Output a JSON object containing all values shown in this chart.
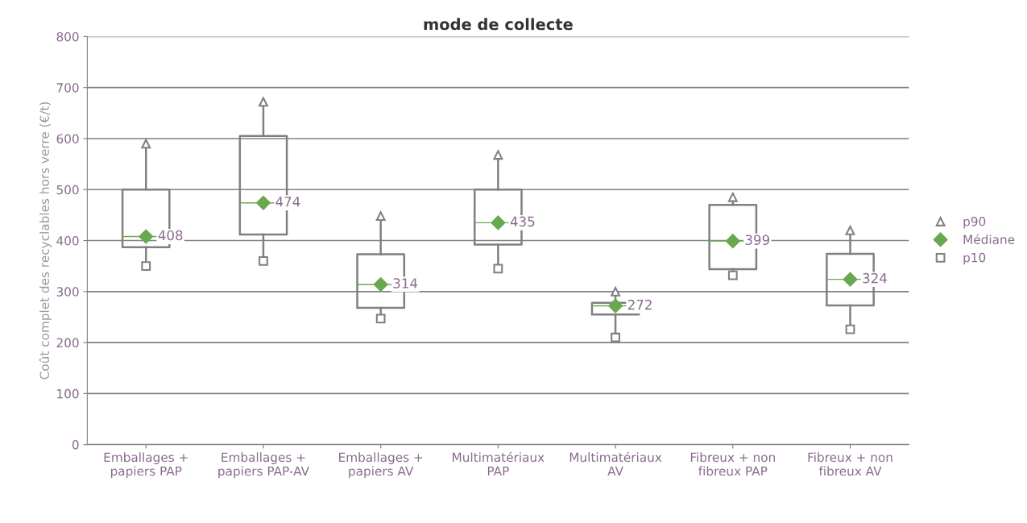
{
  "chart_data": {
    "type": "box",
    "title": "mode de collecte",
    "ylabel": "Coût complet des recyclables hors verre (€/t)",
    "categories": [
      "Emballages + papiers PAP",
      "Emballages + papiers PAP-AV",
      "Emballages + papiers AV",
      "Multimatériaux PAP",
      "Multimatériaux AV",
      "Fibreux + non fibreux PAP",
      "Fibreux + non fibreux AV"
    ],
    "boxes": [
      {
        "low": 350,
        "q1": 387,
        "median": 408,
        "q3": 500,
        "high": 590
      },
      {
        "low": 360,
        "q1": 412,
        "median": 474,
        "q3": 605,
        "high": 672
      },
      {
        "low": 247,
        "q1": 268,
        "median": 314,
        "q3": 373,
        "high": 448
      },
      {
        "low": 345,
        "q1": 392,
        "median": 435,
        "q3": 500,
        "high": 568
      },
      {
        "low": 210,
        "q1": 255,
        "median": 272,
        "q3": 278,
        "high": 300
      },
      {
        "low": 332,
        "q1": 344,
        "median": 399,
        "q3": 470,
        "high": 485
      },
      {
        "low": 226,
        "q1": 273,
        "median": 324,
        "q3": 374,
        "high": 420
      }
    ],
    "series": [
      {
        "name": "p90",
        "type": "scatter",
        "marker": "triangle",
        "color": "#808080",
        "x": [
          "Emballages + papiers PAP",
          "Emballages + papiers PAP-AV",
          "Emballages + papiers AV",
          "Multimatériaux PAP",
          "Multimatériaux AV",
          "Fibreux + non fibreux PAP",
          "Fibreux + non fibreux AV"
        ],
        "values": [
          590,
          672,
          448,
          568,
          300,
          485,
          420
        ]
      },
      {
        "name": "Médiane",
        "type": "scatter",
        "marker": "diamond",
        "color": "#6aa84f",
        "x": [
          "Emballages + papiers PAP",
          "Emballages + papiers PAP-AV",
          "Emballages + papiers AV",
          "Multimatériaux PAP",
          "Multimatériaux AV",
          "Fibreux + non fibreux PAP",
          "Fibreux + non fibreux AV"
        ],
        "values": [
          408,
          474,
          314,
          435,
          272,
          399,
          324
        ],
        "value_labels": [
          "408",
          "474",
          "314",
          "435",
          "272",
          "399",
          "324"
        ]
      },
      {
        "name": "p10",
        "type": "scatter",
        "marker": "square",
        "color": "#808080",
        "x": [
          "Emballages + papiers PAP",
          "Emballages + papiers PAP-AV",
          "Emballages + papiers AV",
          "Multimatériaux PAP",
          "Multimatériaux AV",
          "Fibreux + non fibreux PAP",
          "Fibreux + non fibreux AV"
        ],
        "values": [
          350,
          360,
          247,
          345,
          210,
          332,
          226
        ]
      }
    ],
    "ylim": [
      0,
      800
    ],
    "yticks": [
      0,
      100,
      200,
      300,
      400,
      500,
      600,
      700,
      800
    ],
    "grid": "y",
    "legend": "right"
  }
}
